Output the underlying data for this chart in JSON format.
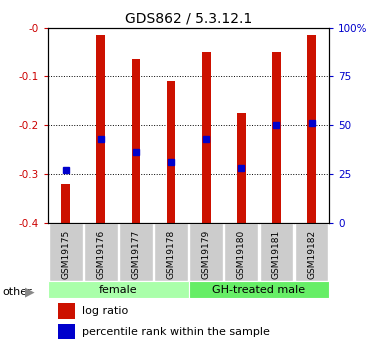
{
  "title": "GDS862 / 5.3.12.1",
  "samples": [
    "GSM19175",
    "GSM19176",
    "GSM19177",
    "GSM19178",
    "GSM19179",
    "GSM19180",
    "GSM19181",
    "GSM19182"
  ],
  "log_ratios": [
    -0.32,
    -0.015,
    -0.065,
    -0.11,
    -0.05,
    -0.175,
    -0.05,
    -0.015
  ],
  "percentile_ranks": [
    27,
    43,
    36,
    31,
    43,
    28,
    50,
    51
  ],
  "bar_bottom": -0.4,
  "ylim": [
    -0.4,
    0.0
  ],
  "right_ylim": [
    0,
    100
  ],
  "right_yticks": [
    0,
    25,
    50,
    75,
    100
  ],
  "right_yticklabels": [
    "0",
    "25",
    "50",
    "75",
    "100%"
  ],
  "left_yticks": [
    0.0,
    -0.1,
    -0.2,
    -0.3,
    -0.4
  ],
  "left_yticklabels": [
    "-0",
    "-0.1",
    "-0.2",
    "-0.3",
    "-0.4"
  ],
  "bar_color": "#cc1100",
  "square_color": "#0000cc",
  "group_labels": [
    "female",
    "GH-treated male"
  ],
  "group_ranges": [
    [
      0,
      4
    ],
    [
      4,
      8
    ]
  ],
  "group_colors": [
    "#aaffaa",
    "#66ee66"
  ],
  "right_axis_color": "#0000cc",
  "left_axis_color": "#cc0000",
  "other_label": "other",
  "legend_entries": [
    "log ratio",
    "percentile rank within the sample"
  ],
  "legend_colors": [
    "#cc1100",
    "#0000cc"
  ],
  "tick_label_bg": "#cccccc",
  "bar_width": 0.25
}
